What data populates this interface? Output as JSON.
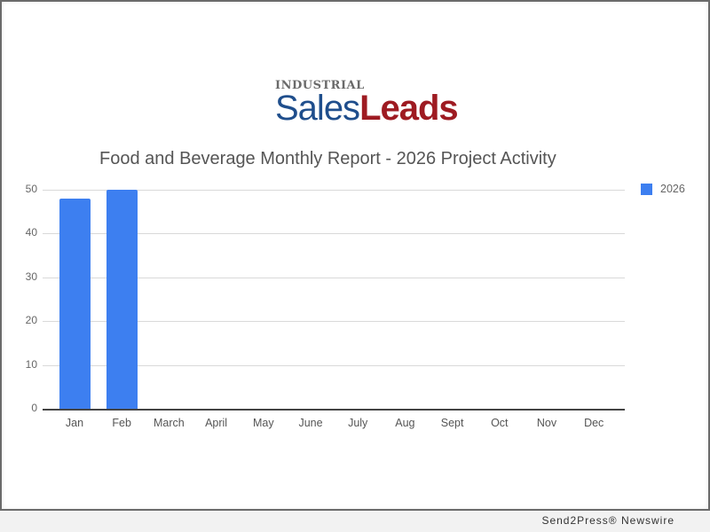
{
  "logo": {
    "top": "INDUSTRIAL",
    "sales": "Sales",
    "leads": "Leads"
  },
  "footer": "Send2Press® Newswire",
  "colors": {
    "bar": "#3d7ff0",
    "logo_blue": "#1f4e8c",
    "logo_red": "#9e1b22"
  },
  "chart_data": {
    "type": "bar",
    "title": "Food and Beverage Monthly Report - 2026 Project Activity",
    "categories": [
      "Jan",
      "Feb",
      "March",
      "April",
      "May",
      "June",
      "July",
      "Aug",
      "Sept",
      "Oct",
      "Nov",
      "Dec"
    ],
    "series": [
      {
        "name": "2026",
        "values": [
          48,
          50,
          0,
          0,
          0,
          0,
          0,
          0,
          0,
          0,
          0,
          0
        ]
      }
    ],
    "xlabel": "",
    "ylabel": "",
    "ylim": [
      0,
      50
    ],
    "yticks": [
      0,
      10,
      20,
      30,
      40,
      50
    ],
    "grid": true,
    "legend_position": "right"
  }
}
